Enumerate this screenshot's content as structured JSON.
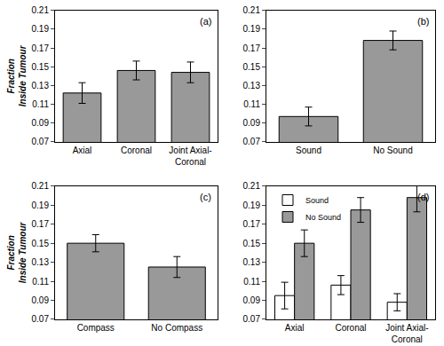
{
  "chart_data": [
    {
      "type": "bar",
      "title": "(a)",
      "ylabel": "Fraction Inside Tumour",
      "categories": [
        "Axial",
        "Coronal",
        "Joint Axial-Coronal"
      ],
      "values": [
        0.122,
        0.146,
        0.144
      ],
      "errors": [
        0.011,
        0.01,
        0.011
      ],
      "color": "#999999",
      "ylim": [
        0.07,
        0.21
      ],
      "yticks": [
        0.07,
        0.09,
        0.11,
        0.13,
        0.15,
        0.17,
        0.19,
        0.21
      ],
      "grid": false
    },
    {
      "type": "bar",
      "title": "(b)",
      "categories": [
        "Sound",
        "No Sound"
      ],
      "values": [
        0.097,
        0.178
      ],
      "errors": [
        0.01,
        0.01
      ],
      "color": "#999999",
      "ylim": [
        0.07,
        0.21
      ],
      "yticks": [
        0.07,
        0.09,
        0.11,
        0.13,
        0.15,
        0.17,
        0.19,
        0.21
      ],
      "grid": false
    },
    {
      "type": "bar",
      "title": "(c)",
      "ylabel": "Fraction Inside Tumour",
      "categories": [
        "Compass",
        "No Compass"
      ],
      "values": [
        0.15,
        0.125
      ],
      "errors": [
        0.009,
        0.011
      ],
      "color": "#999999",
      "ylim": [
        0.07,
        0.21
      ],
      "yticks": [
        0.07,
        0.09,
        0.11,
        0.13,
        0.15,
        0.17,
        0.19,
        0.21
      ],
      "grid": false
    },
    {
      "type": "bar",
      "title": "(d)",
      "categories": [
        "Axial",
        "Coronal",
        "Joint Axial-Coronal"
      ],
      "series": [
        {
          "name": "Sound",
          "color": "#ffffff",
          "values": [
            0.095,
            0.106,
            0.088
          ],
          "errors": [
            0.014,
            0.01,
            0.009
          ]
        },
        {
          "name": "No Sound",
          "color": "#999999",
          "values": [
            0.15,
            0.185,
            0.198
          ],
          "errors": [
            0.014,
            0.013,
            0.015
          ]
        }
      ],
      "legend": "upper left",
      "ylim": [
        0.07,
        0.21
      ],
      "yticks": [
        0.07,
        0.09,
        0.11,
        0.13,
        0.15,
        0.17,
        0.19,
        0.21
      ],
      "grid": false
    }
  ]
}
